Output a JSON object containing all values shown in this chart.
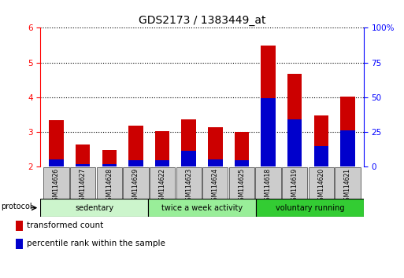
{
  "title": "GDS2173 / 1383449_at",
  "categories": [
    "GSM114626",
    "GSM114627",
    "GSM114628",
    "GSM114629",
    "GSM114622",
    "GSM114623",
    "GSM114624",
    "GSM114625",
    "GSM114618",
    "GSM114619",
    "GSM114620",
    "GSM114621"
  ],
  "red_values": [
    3.35,
    2.65,
    2.48,
    3.18,
    3.03,
    3.37,
    3.15,
    3.01,
    5.48,
    4.68,
    3.47,
    4.03
  ],
  "blue_values": [
    2.22,
    2.07,
    2.07,
    2.18,
    2.18,
    2.45,
    2.22,
    2.18,
    3.97,
    3.36,
    2.6,
    3.05
  ],
  "ylim_left": [
    2,
    6
  ],
  "ylim_right": [
    0,
    100
  ],
  "yticks_left": [
    2,
    3,
    4,
    5,
    6
  ],
  "yticks_right": [
    0,
    25,
    50,
    75,
    100
  ],
  "groups": [
    {
      "label": "sedentary",
      "indices": [
        0,
        3
      ],
      "color": "#ccf5cc"
    },
    {
      "label": "twice a week activity",
      "indices": [
        4,
        7
      ],
      "color": "#99ee99"
    },
    {
      "label": "voluntary running",
      "indices": [
        8,
        11
      ],
      "color": "#33cc33"
    }
  ],
  "protocol_label": "protocol",
  "legend_red": "transformed count",
  "legend_blue": "percentile rank within the sample",
  "bar_width": 0.55,
  "bar_bottom": 2.0,
  "title_fontsize": 10,
  "axis_color_left": "red",
  "axis_color_right": "blue",
  "right_ytick_labels": [
    "0",
    "25",
    "50",
    "75",
    "100%"
  ],
  "grid_style": "dotted",
  "bar_color_red": "#cc0000",
  "bar_color_blue": "#0000cc",
  "xticklabel_bg": "#cccccc"
}
